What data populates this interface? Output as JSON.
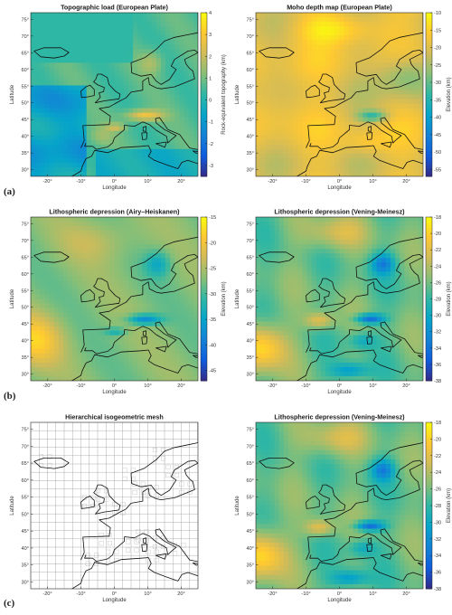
{
  "row_labels": [
    "(a)",
    "(b)",
    "(c)"
  ],
  "panels": [
    {
      "title": "Topographic load (European Plate)",
      "type": "heatmap",
      "colormap": "parula",
      "colorbar": {
        "label": "Rock-equivalent topography (km)",
        "ticks": [
          "4",
          "3",
          "2",
          "1",
          "0",
          "-1",
          "-2",
          "-3"
        ],
        "range": [
          -3.5,
          4
        ]
      }
    },
    {
      "title": "Moho depth map (European Plate)",
      "type": "heatmap",
      "colormap": "parula",
      "colorbar": {
        "label": "Elevation (km)",
        "ticks": [
          "-10",
          "-15",
          "-20",
          "-25",
          "-30",
          "-35",
          "-40",
          "-45",
          "-50",
          "-55"
        ],
        "range": [
          -57,
          -10
        ]
      }
    },
    {
      "title": "Lithospheric depression (Airy–Heiskanen)",
      "type": "heatmap",
      "colormap": "parula",
      "colorbar": {
        "label": "Elevation (km)",
        "ticks": [
          "-15",
          "-20",
          "-25",
          "-30",
          "-35",
          "-40",
          "-45"
        ],
        "range": [
          -47,
          -15
        ]
      }
    },
    {
      "title": "Lithospheric depression (Vening-Meinesz)",
      "type": "heatmap",
      "colormap": "parula",
      "colorbar": {
        "label": "Elevation (km)",
        "ticks": [
          "-18",
          "-20",
          "-22",
          "-24",
          "-26",
          "-28",
          "-30",
          "-32",
          "-34",
          "-36",
          "-38"
        ],
        "range": [
          -38,
          -18
        ]
      }
    },
    {
      "title": "Hierarchical isogeometric mesh",
      "type": "mesh"
    },
    {
      "title": "Lithospheric depression (Vening-Meinesz)",
      "type": "heatmap",
      "colormap": "parula",
      "colorbar": {
        "label": "Elevation (km)",
        "ticks": [
          "-18",
          "-20",
          "-22",
          "-24",
          "-26",
          "-28",
          "-30",
          "-32",
          "-34",
          "-36",
          "-38"
        ],
        "range": [
          -38,
          -18
        ]
      }
    }
  ],
  "axes": {
    "xlabel": "Longitude",
    "ylabel": "Latitude",
    "xticks": [
      "-20°",
      "-10°",
      "0°",
      "10°",
      "20°"
    ],
    "yticks": [
      "75°",
      "70°",
      "65°",
      "60°",
      "55°",
      "50°",
      "45°",
      "40°",
      "35°",
      "30°"
    ],
    "xlim": [
      -25,
      25
    ],
    "ylim": [
      28,
      77
    ]
  },
  "colors": {
    "parula": [
      "#352a87",
      "#0f5cdd",
      "#1481d6",
      "#06a4ca",
      "#2eb7a4",
      "#87bf77",
      "#d1bb59",
      "#fec832",
      "#f9fb0e"
    ]
  },
  "chart_data": [
    {
      "type": "heatmap",
      "title": "Topographic load (European Plate)",
      "xlabel": "Longitude",
      "ylabel": "Latitude",
      "xlim": [
        -25,
        25
      ],
      "ylim": [
        28,
        77
      ],
      "colorbar_label": "Rock-equivalent topography (km)",
      "colorbar_range": [
        -3.5,
        4
      ]
    },
    {
      "type": "heatmap",
      "title": "Moho depth map (European Plate)",
      "xlabel": "Longitude",
      "ylabel": "Latitude",
      "xlim": [
        -25,
        25
      ],
      "ylim": [
        28,
        77
      ],
      "colorbar_label": "Elevation (km)",
      "colorbar_range": [
        -57,
        -10
      ]
    },
    {
      "type": "heatmap",
      "title": "Lithospheric depression (Airy–Heiskanen)",
      "xlabel": "Longitude",
      "ylabel": "Latitude",
      "xlim": [
        -25,
        25
      ],
      "ylim": [
        28,
        77
      ],
      "colorbar_label": "Elevation (km)",
      "colorbar_range": [
        -47,
        -15
      ]
    },
    {
      "type": "heatmap",
      "title": "Lithospheric depression (Vening-Meinesz)",
      "xlabel": "Longitude",
      "ylabel": "Latitude",
      "xlim": [
        -25,
        25
      ],
      "ylim": [
        28,
        77
      ],
      "colorbar_label": "Elevation (km)",
      "colorbar_range": [
        -38,
        -18
      ]
    },
    {
      "type": "heatmap",
      "title": "Hierarchical isogeometric mesh",
      "xlabel": "Longitude",
      "ylabel": "Latitude",
      "xlim": [
        -25,
        25
      ],
      "ylim": [
        28,
        77
      ]
    },
    {
      "type": "heatmap",
      "title": "Lithospheric depression (Vening-Meinesz)",
      "xlabel": "Longitude",
      "ylabel": "Latitude",
      "xlim": [
        -25,
        25
      ],
      "ylim": [
        28,
        77
      ],
      "colorbar_label": "Elevation (km)",
      "colorbar_range": [
        -38,
        -18
      ]
    }
  ]
}
